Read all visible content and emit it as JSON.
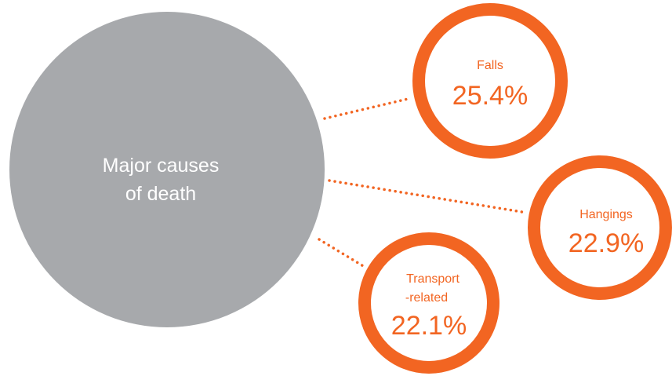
{
  "center": {
    "line1": "Major causes",
    "line2": "of death",
    "color": "#a7a9ac"
  },
  "accent_color": "#f26522",
  "causes": [
    {
      "label": "Falls",
      "label2": "",
      "value": "25.4%"
    },
    {
      "label": "Hangings",
      "label2": "",
      "value": "22.9%"
    },
    {
      "label": "Transport",
      "label2": "-related",
      "value": "22.1%"
    }
  ]
}
